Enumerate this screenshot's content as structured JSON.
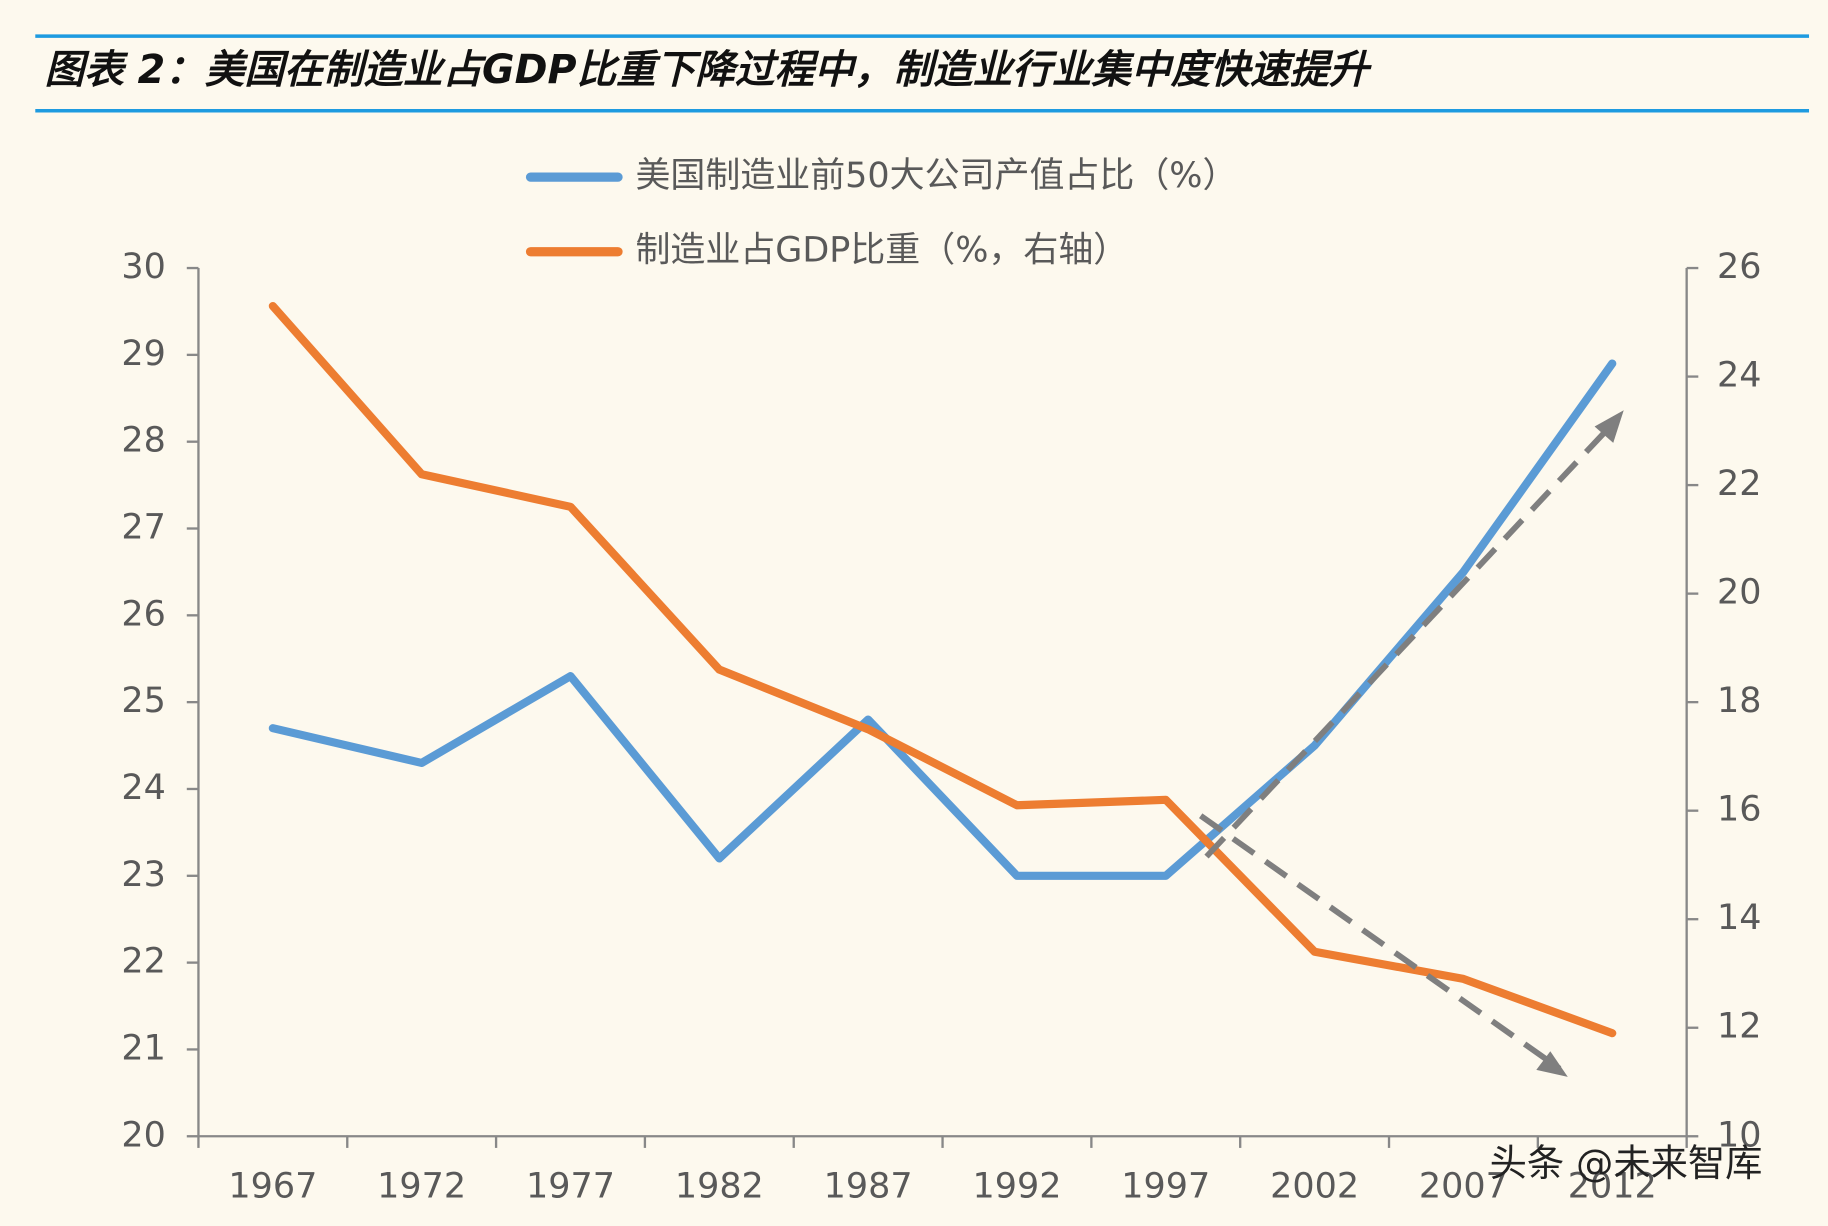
{
  "header": {
    "title": "图表 2：美国在制造业占GDP比重下降过程中，制造业行业集中度快速提升"
  },
  "chart_data": {
    "type": "line",
    "categories": [
      "1967",
      "1972",
      "1977",
      "1982",
      "1987",
      "1992",
      "1997",
      "2002",
      "2007",
      "2012"
    ],
    "series": [
      {
        "name": "美国制造业前50大公司产值占比（%）",
        "color": "#5b9bd5",
        "values": [
          24.7,
          24.3,
          25.3,
          23.2,
          24.8,
          23.0,
          23.0,
          24.5,
          26.5,
          28.9
        ]
      },
      {
        "name": "制造业占GDP比重（%，右轴）",
        "color": "#ed7d31",
        "axis": "y2",
        "values": [
          25.3,
          22.2,
          21.6,
          18.6,
          17.5,
          16.1,
          16.2,
          13.4,
          12.9,
          11.9
        ]
      }
    ],
    "ylim": [
      20,
      30
    ],
    "yticks": [
      20,
      21,
      22,
      23,
      24,
      25,
      26,
      27,
      28,
      29,
      30
    ],
    "y2lim": [
      10,
      26
    ],
    "y2ticks": [
      10,
      12,
      14,
      16,
      18,
      20,
      22,
      24,
      26
    ],
    "legend": "top"
  },
  "watermark": "头条 @未来智库"
}
